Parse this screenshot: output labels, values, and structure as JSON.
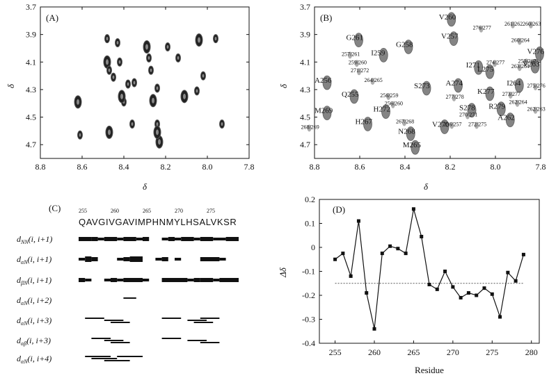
{
  "chart_data": [
    {
      "type": "scatter",
      "panel_label": "(A)",
      "xlabel": "δ",
      "ylabel": "δ",
      "xlim": [
        8.8,
        7.8
      ],
      "ylim": [
        3.7,
        4.8
      ],
      "x_ticks": [
        "8.8",
        "8.6",
        "8.4",
        "8.2",
        "8.0",
        "7.8"
      ],
      "y_ticks": [
        "3.7",
        "3.9",
        "4.1",
        "4.3",
        "4.5",
        "4.7"
      ],
      "peaks": [
        [
          8.62,
          4.39
        ],
        [
          8.61,
          4.63
        ],
        [
          8.48,
          3.93
        ],
        [
          8.48,
          4.1
        ],
        [
          8.47,
          4.16
        ],
        [
          8.45,
          4.21
        ],
        [
          8.47,
          4.61
        ],
        [
          8.42,
          4.1
        ],
        [
          8.4,
          4.39
        ],
        [
          8.41,
          4.35
        ],
        [
          8.36,
          4.55
        ],
        [
          8.35,
          4.25
        ],
        [
          8.29,
          3.99
        ],
        [
          8.28,
          4.07
        ],
        [
          8.27,
          4.16
        ],
        [
          8.26,
          4.38
        ],
        [
          8.24,
          4.55
        ],
        [
          8.24,
          4.29
        ],
        [
          8.23,
          4.68
        ],
        [
          8.19,
          3.99
        ],
        [
          8.14,
          4.07
        ],
        [
          8.11,
          4.35
        ],
        [
          8.05,
          4.31
        ],
        [
          8.02,
          4.2
        ],
        [
          8.04,
          3.94
        ],
        [
          7.96,
          3.93
        ],
        [
          7.93,
          4.55
        ],
        [
          8.24,
          4.61
        ],
        [
          8.43,
          3.96
        ],
        [
          8.38,
          4.26
        ]
      ]
    },
    {
      "type": "scatter",
      "panel_label": "(B)",
      "xlabel": "δ",
      "ylabel": "δ",
      "xlim": [
        8.8,
        7.8
      ],
      "ylim": [
        3.7,
        4.8
      ],
      "x_ticks": [
        "8.8",
        "8.6",
        "8.4",
        "8.2",
        "8.0",
        "7.8"
      ],
      "y_ticks": [
        "3.7",
        "3.9",
        "4.1",
        "4.3",
        "4.5",
        "4.7"
      ],
      "labels_large": [
        {
          "text": "V260",
          "x": 8.25,
          "y": 3.77
        },
        {
          "text": "G261",
          "x": 8.66,
          "y": 3.92
        },
        {
          "text": "V257",
          "x": 8.24,
          "y": 3.91
        },
        {
          "text": "G258",
          "x": 8.44,
          "y": 3.97
        },
        {
          "text": "I259",
          "x": 8.55,
          "y": 4.03
        },
        {
          "text": "V276",
          "x": 7.86,
          "y": 4.02
        },
        {
          "text": "V263",
          "x": 7.88,
          "y": 4.11
        },
        {
          "text": "I271",
          "x": 8.13,
          "y": 4.12
        },
        {
          "text": "L275",
          "x": 8.08,
          "y": 4.15
        },
        {
          "text": "A256",
          "x": 8.8,
          "y": 4.23
        },
        {
          "text": "S273",
          "x": 8.36,
          "y": 4.27
        },
        {
          "text": "A274",
          "x": 8.22,
          "y": 4.25
        },
        {
          "text": "K277",
          "x": 8.08,
          "y": 4.31
        },
        {
          "text": "I264",
          "x": 7.95,
          "y": 4.25
        },
        {
          "text": "Q255",
          "x": 8.68,
          "y": 4.33
        },
        {
          "text": "M269",
          "x": 8.8,
          "y": 4.45
        },
        {
          "text": "H272",
          "x": 8.54,
          "y": 4.44
        },
        {
          "text": "S278",
          "x": 8.16,
          "y": 4.43
        },
        {
          "text": "R279",
          "x": 8.03,
          "y": 4.42
        },
        {
          "text": "H267",
          "x": 8.62,
          "y": 4.53
        },
        {
          "text": "V270",
          "x": 8.28,
          "y": 4.55
        },
        {
          "text": "N268",
          "x": 8.43,
          "y": 4.6
        },
        {
          "text": "A262",
          "x": 7.99,
          "y": 4.5
        },
        {
          "text": "M265",
          "x": 8.41,
          "y": 4.7
        }
      ],
      "labels_small": [
        {
          "text": "261/262",
          "x": 7.96,
          "y": 3.82
        },
        {
          "text": "260/263",
          "x": 7.88,
          "y": 3.82
        },
        {
          "text": "276/277",
          "x": 8.1,
          "y": 3.85
        },
        {
          "text": "260/264",
          "x": 7.93,
          "y": 3.94
        },
        {
          "text": "259/262",
          "x": 7.9,
          "y": 4.09
        },
        {
          "text": "257/261",
          "x": 8.68,
          "y": 4.04
        },
        {
          "text": "259/260",
          "x": 8.65,
          "y": 4.1
        },
        {
          "text": "271/272",
          "x": 8.64,
          "y": 4.16
        },
        {
          "text": "274/277",
          "x": 8.04,
          "y": 4.1
        },
        {
          "text": "263/264",
          "x": 7.93,
          "y": 4.13
        },
        {
          "text": "264/265",
          "x": 8.58,
          "y": 4.23
        },
        {
          "text": "275/276",
          "x": 7.86,
          "y": 4.27
        },
        {
          "text": "256/259",
          "x": 8.51,
          "y": 4.34
        },
        {
          "text": "256/260",
          "x": 8.49,
          "y": 4.4
        },
        {
          "text": "273/277",
          "x": 7.97,
          "y": 4.33
        },
        {
          "text": "277/278",
          "x": 8.22,
          "y": 4.35
        },
        {
          "text": "262/264",
          "x": 7.94,
          "y": 4.39
        },
        {
          "text": "262/263",
          "x": 7.86,
          "y": 4.44
        },
        {
          "text": "270/271",
          "x": 8.16,
          "y": 4.48
        },
        {
          "text": "267/268",
          "x": 8.44,
          "y": 4.53
        },
        {
          "text": "256/257",
          "x": 8.23,
          "y": 4.55
        },
        {
          "text": "272/275",
          "x": 8.12,
          "y": 4.55
        },
        {
          "text": "268/269",
          "x": 8.86,
          "y": 4.57
        }
      ]
    },
    {
      "type": "table",
      "panel_label": "(C)",
      "sequence": "QAVGIVGAVIMPHNMYLHSALVKSR",
      "position_labels": [
        {
          "text": "255",
          "i": 0
        },
        {
          "text": "260",
          "i": 5
        },
        {
          "text": "265",
          "i": 10
        },
        {
          "text": "270",
          "i": 15
        },
        {
          "text": "275",
          "i": 20
        }
      ],
      "rows": [
        {
          "name": "dNN(i, i+1)",
          "sym": "d",
          "sub": "NN",
          "tail": "(i, i+1)",
          "bars": [
            [
              0,
              2,
              3
            ],
            [
              2,
              3,
              3
            ],
            [
              3,
              4,
              2
            ],
            [
              4,
              6,
              3
            ],
            [
              6,
              7,
              2
            ],
            [
              7,
              9,
              3
            ],
            [
              9,
              10,
              2
            ],
            [
              10,
              11,
              3
            ],
            [
              13,
              14,
              2
            ],
            [
              14,
              15,
              3
            ],
            [
              15,
              16,
              2
            ],
            [
              16,
              18,
              3
            ],
            [
              18,
              19,
              2
            ],
            [
              19,
              21,
              3
            ],
            [
              21,
              23,
              2
            ],
            [
              23,
              25,
              3
            ]
          ]
        },
        {
          "name": "dαN(i, i+1)",
          "sym": "d",
          "sub": "αN",
          "tail": "(i, i+1)",
          "bars": [
            [
              0,
              1,
              2
            ],
            [
              1,
              2,
              4
            ],
            [
              2,
              3,
              3
            ],
            [
              6,
              7,
              2
            ],
            [
              7,
              8,
              3
            ],
            [
              8,
              10,
              4
            ],
            [
              12,
              13,
              2
            ],
            [
              13,
              14,
              3
            ],
            [
              15,
              16,
              2
            ],
            [
              19,
              22,
              3
            ],
            [
              22,
              23,
              2
            ]
          ]
        },
        {
          "name": "dβN(i, i+1)",
          "sym": "d",
          "sub": "βN",
          "tail": "(i, i+1)",
          "bars": [
            [
              0,
              1,
              3
            ],
            [
              1,
              2,
              2
            ],
            [
              4,
              5,
              2
            ],
            [
              5,
              6,
              3
            ],
            [
              6,
              7,
              2
            ],
            [
              7,
              10,
              3
            ],
            [
              10,
              11,
              2
            ],
            [
              13,
              15,
              3
            ],
            [
              15,
              17,
              3
            ],
            [
              17,
              18,
              2
            ],
            [
              18,
              19,
              3
            ],
            [
              19,
              21,
              3
            ],
            [
              21,
              22,
              2
            ],
            [
              22,
              25,
              3
            ]
          ]
        },
        {
          "name": "dαN(i, i+2)",
          "sym": "d",
          "sub": "αN",
          "tail": "(i, i+2)",
          "lines": [
            [
              7,
              9
            ]
          ]
        },
        {
          "name": "dαN(i, i+3)",
          "sym": "d",
          "sub": "αN",
          "tail": "(i, i+3)",
          "lines": [
            [
              1,
              4
            ],
            [
              4,
              7
            ],
            [
              5,
              8
            ],
            [
              13,
              16
            ],
            [
              17,
              20
            ],
            [
              18,
              21
            ],
            [
              19,
              22
            ]
          ]
        },
        {
          "name": "dαβ(i, i+3)",
          "sym": "d",
          "sub": "αβ",
          "tail": "(i, i+3)",
          "lines": [
            [
              2,
              5
            ],
            [
              4,
              7
            ],
            [
              5,
              8
            ],
            [
              13,
              16
            ],
            [
              17,
              20
            ],
            [
              19,
              22
            ]
          ]
        },
        {
          "name": "dαN(i, i+4)",
          "sym": "d",
          "sub": "αN",
          "tail": "(i, i+4)",
          "lines": [
            [
              1,
              5
            ],
            [
              2,
              6
            ],
            [
              4,
              8
            ],
            [
              6,
              10
            ]
          ]
        }
      ]
    },
    {
      "type": "line",
      "panel_label": "(D)",
      "xlabel": "Residue",
      "ylabel": "Δδ",
      "xlim": [
        253,
        281
      ],
      "ylim": [
        -0.4,
        0.2
      ],
      "x_ticks": [
        255,
        260,
        265,
        270,
        275,
        280
      ],
      "y_ticks": [
        "0.2",
        "0.1",
        "0",
        "-0.1",
        "-0.2",
        "-0.3",
        "-0.4"
      ],
      "reference_line": -0.15,
      "series": [
        {
          "x": [
            255,
            256,
            257,
            258,
            259,
            260,
            261,
            262,
            263,
            264,
            265,
            266,
            267,
            268,
            269,
            270,
            271,
            272,
            273,
            274,
            275,
            276,
            277,
            278,
            279
          ],
          "values": [
            -0.05,
            -0.025,
            -0.12,
            0.11,
            -0.19,
            -0.34,
            -0.025,
            0.005,
            -0.005,
            -0.025,
            0.16,
            0.045,
            -0.155,
            -0.175,
            -0.1,
            -0.165,
            -0.21,
            -0.19,
            -0.2,
            -0.17,
            -0.195,
            -0.29,
            -0.105,
            -0.14,
            -0.03
          ]
        }
      ]
    }
  ]
}
